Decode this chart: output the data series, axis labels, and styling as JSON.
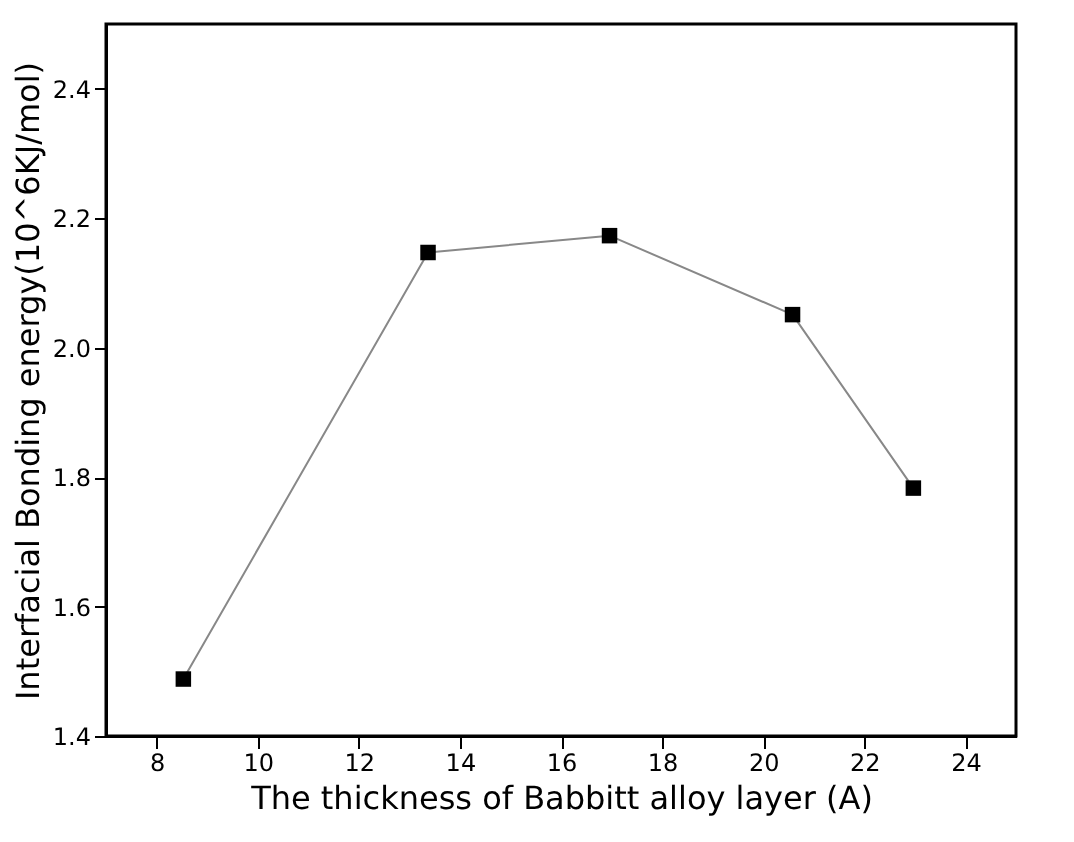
{
  "chart_data": {
    "type": "line",
    "xlabel": "The thickness of Babbitt alloy layer (A)",
    "ylabel": "Interfacial Bonding energy(10^6KJ/mol)",
    "x": [
      8.53,
      13.37,
      16.96,
      20.58,
      22.97
    ],
    "series": [
      {
        "color": "#000000",
        "values": [
          1.488,
          2.147,
          2.173,
          2.051,
          1.783
        ]
      }
    ],
    "xlim": [
      7,
      25
    ],
    "xticks": [
      8,
      10,
      12,
      14,
      16,
      18,
      20,
      22,
      24
    ],
    "ylim": [
      1.4,
      2.5
    ],
    "yticks": [
      1.4,
      1.6,
      1.8,
      {
        "value": 2,
        "label": "2.0"
      },
      2.2,
      2.4
    ],
    "marker": "square",
    "line_style": "solid",
    "grid": false
  }
}
